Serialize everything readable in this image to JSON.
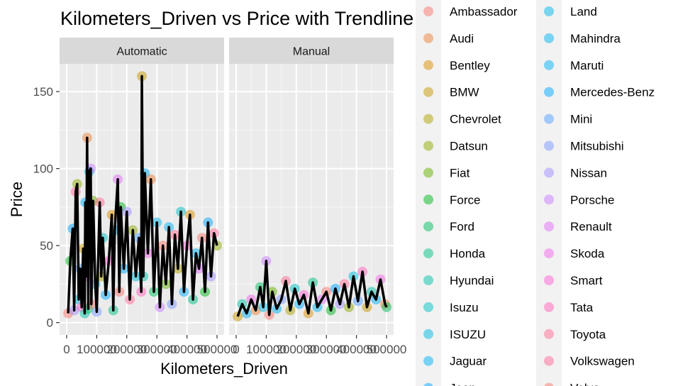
{
  "chart_data": {
    "type": "scatter",
    "title": "Kilometers_Driven vs Price with Trendline",
    "xlabel": "Kilometers_Driven",
    "ylabel": "Price",
    "facets": [
      "Automatic",
      "Manual"
    ],
    "xlim": [
      0,
      500000
    ],
    "ylim": [
      -8,
      168
    ],
    "x_ticks": [
      0,
      100000,
      200000,
      300000,
      400000,
      500000
    ],
    "x_tick_labels": [
      "0",
      "100000",
      "200000",
      "300000",
      "400000",
      "500000"
    ],
    "y_ticks": [
      0,
      50,
      100,
      150
    ],
    "y_tick_labels": [
      "0",
      "50",
      "100",
      "150"
    ],
    "grid": true,
    "trendline_color": "#000000",
    "legend_position": "right",
    "legend": [
      {
        "name": "Ambassador",
        "color": "#F8766D"
      },
      {
        "name": "Audi",
        "color": "#EC8239"
      },
      {
        "name": "Bentley",
        "color": "#DB8E00"
      },
      {
        "name": "BMW",
        "color": "#C79800"
      },
      {
        "name": "Chevrolet",
        "color": "#AEA200"
      },
      {
        "name": "Datsun",
        "color": "#8FAA00"
      },
      {
        "name": "Fiat",
        "color": "#64B200"
      },
      {
        "name": "Force",
        "color": "#00B81B"
      },
      {
        "name": "Ford",
        "color": "#00BD5C"
      },
      {
        "name": "Honda",
        "color": "#00C085"
      },
      {
        "name": "Hyundai",
        "color": "#00C1A7"
      },
      {
        "name": "Isuzu",
        "color": "#00BFC4"
      },
      {
        "name": "ISUZU",
        "color": "#00BADE"
      },
      {
        "name": "Jaguar",
        "color": "#00B2F3"
      },
      {
        "name": "Jeep",
        "color": "#00A6FF"
      },
      {
        "name": "Land",
        "color": "#00B8E7"
      },
      {
        "name": "Mahindra",
        "color": "#00B4EF"
      },
      {
        "name": "Maruti",
        "color": "#00AFF5"
      },
      {
        "name": "Mercedes-Benz",
        "color": "#00A9FF"
      },
      {
        "name": "Mini",
        "color": "#4FA0FF"
      },
      {
        "name": "Mitsubishi",
        "color": "#7997FF"
      },
      {
        "name": "Nissan",
        "color": "#9F8CFF"
      },
      {
        "name": "Porsche",
        "color": "#C77CFF"
      },
      {
        "name": "Renault",
        "color": "#E26EF7"
      },
      {
        "name": "Skoda",
        "color": "#F265E8"
      },
      {
        "name": "Smart",
        "color": "#FB61D7"
      },
      {
        "name": "Tata",
        "color": "#FF62BC"
      },
      {
        "name": "Toyota",
        "color": "#FF6C91"
      },
      {
        "name": "Volkswagen",
        "color": "#FF6A98"
      },
      {
        "name": "Volvo",
        "color": "#F8766D"
      }
    ],
    "panels": [
      {
        "facet": "Automatic",
        "x": [
          5000,
          12000,
          20000,
          25000,
          30000,
          35000,
          40000,
          45000,
          50000,
          55000,
          60000,
          62000,
          65000,
          68000,
          72000,
          75000,
          80000,
          82000,
          88000,
          95000,
          100000,
          110000,
          115000,
          120000,
          130000,
          140000,
          150000,
          155000,
          160000,
          170000,
          175000,
          180000,
          190000,
          200000,
          210000,
          220000,
          230000,
          240000,
          248000,
          250000,
          255000,
          260000,
          270000,
          280000,
          290000,
          300000,
          310000,
          320000,
          330000,
          340000,
          350000,
          360000,
          370000,
          380000,
          390000,
          400000,
          410000,
          420000,
          430000,
          440000,
          450000,
          460000,
          470000,
          480000,
          490000,
          500000
        ],
        "y": [
          6,
          40,
          61,
          8,
          85,
          90,
          15,
          35,
          10,
          48,
          6,
          78,
          30,
          120,
          9,
          98,
          100,
          12,
          79,
          25,
          7,
          78,
          30,
          55,
          18,
          40,
          70,
          8,
          60,
          93,
          20,
          75,
          35,
          72,
          15,
          60,
          30,
          55,
          20,
          160,
          30,
          97,
          45,
          93,
          20,
          65,
          10,
          50,
          25,
          62,
          12,
          57,
          35,
          72,
          20,
          50,
          70,
          15,
          45,
          35,
          55,
          20,
          65,
          30,
          58,
          50
        ]
      },
      {
        "facet": "Manual",
        "x": [
          5000,
          20000,
          35000,
          50000,
          65000,
          80000,
          90000,
          100000,
          110000,
          120000,
          135000,
          150000,
          165000,
          180000,
          195000,
          210000,
          225000,
          240000,
          255000,
          270000,
          285000,
          300000,
          315000,
          330000,
          345000,
          360000,
          375000,
          390000,
          405000,
          420000,
          435000,
          450000,
          465000,
          480000,
          495000,
          500000
        ],
        "y": [
          4,
          12,
          6,
          15,
          8,
          23,
          10,
          40,
          5,
          20,
          9,
          15,
          27,
          8,
          22,
          12,
          18,
          6,
          26,
          10,
          15,
          20,
          8,
          22,
          12,
          25,
          10,
          30,
          14,
          33,
          10,
          20,
          15,
          28,
          12,
          10
        ]
      }
    ]
  }
}
